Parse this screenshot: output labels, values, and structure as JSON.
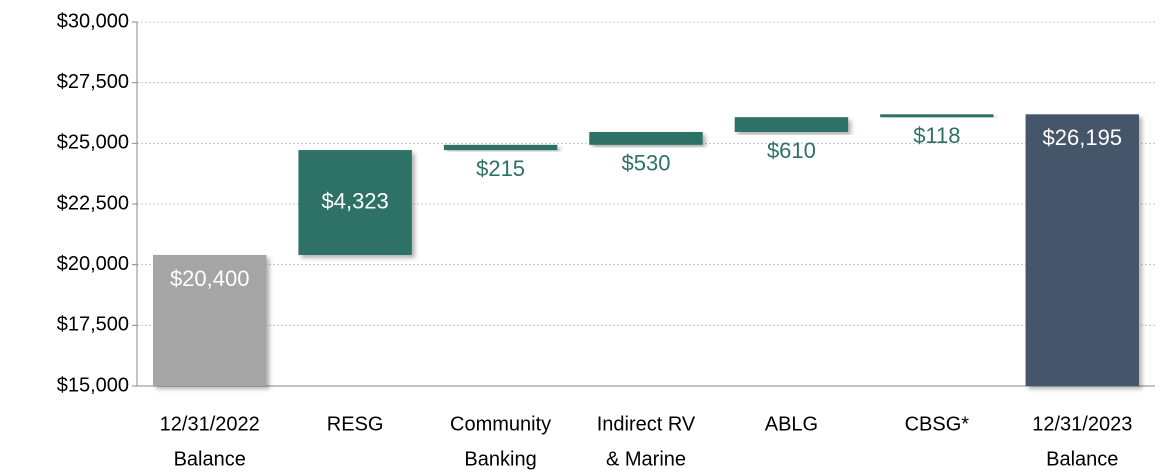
{
  "chart_data": {
    "type": "waterfall",
    "categories": [
      [
        "12/31/2022",
        "Balance"
      ],
      [
        "RESG"
      ],
      [
        "Community",
        "Banking"
      ],
      [
        "Indirect RV",
        "& Marine"
      ],
      [
        "ABLG"
      ],
      [
        "CBSG*"
      ],
      [
        "12/31/2023",
        "Balance"
      ]
    ],
    "values": [
      20400,
      4323,
      215,
      530,
      610,
      118,
      26195
    ],
    "value_labels": [
      "$20,400",
      "$4,323",
      "$215",
      "$530",
      "$610",
      "$118",
      "$26,195"
    ],
    "colors": [
      "#a5a5a5",
      "#2e7166",
      "#2e7166",
      "#2e7166",
      "#2e7166",
      "#2e7166",
      "#44546a"
    ],
    "ylim": [
      15000,
      30000
    ],
    "yticks": [
      {
        "value": 15000,
        "label": "$15,000"
      },
      {
        "value": 17500,
        "label": "$17,500"
      },
      {
        "value": 20000,
        "label": "$20,000"
      },
      {
        "value": 22500,
        "label": "$22,500"
      },
      {
        "value": 25000,
        "label": "$25,000"
      },
      {
        "value": 27500,
        "label": "$27,500"
      },
      {
        "value": 30000,
        "label": "$30,000"
      }
    ],
    "grid": true
  }
}
